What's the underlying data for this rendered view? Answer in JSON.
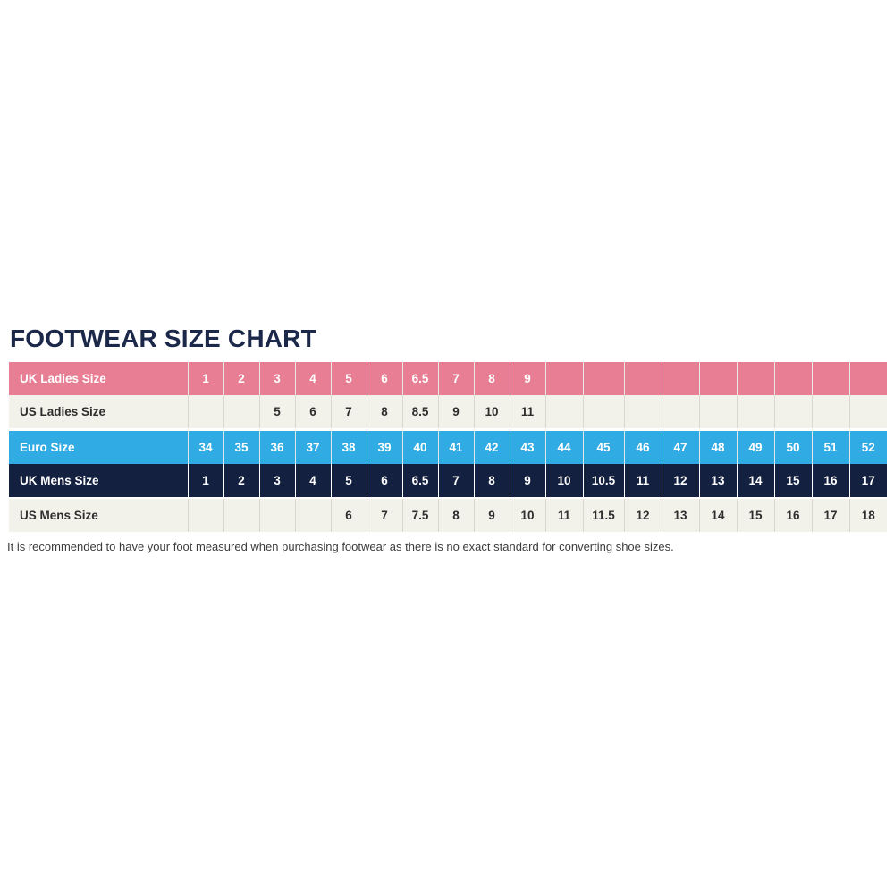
{
  "title": "FOOTWEAR SIZE CHART",
  "footnote": "It is recommended to have your foot measured when purchasing footwear as there is no exact standard for converting shoe sizes.",
  "colors": {
    "title_navy": "#1C2849",
    "row_pink": "#E87E93",
    "row_light": "#F2F1EA",
    "row_blue": "#31ABE3",
    "row_navy": "#14203F",
    "light_divider": "#D9D8CF",
    "dark_text": "#2E2E2E",
    "footnote_text": "#3C3C3C"
  },
  "chart_data": {
    "type": "table",
    "title": "FOOTWEAR SIZE CHART",
    "column_count": 19,
    "rows": [
      {
        "label": "UK Ladies Size",
        "style": "pink",
        "values": [
          "1",
          "2",
          "3",
          "4",
          "5",
          "6",
          "6.5",
          "7",
          "8",
          "9",
          "",
          "",
          "",
          "",
          "",
          "",
          "",
          "",
          ""
        ]
      },
      {
        "label": "US Ladies Size",
        "style": "light",
        "values": [
          "",
          "",
          "5",
          "6",
          "7",
          "8",
          "8.5",
          "9",
          "10",
          "11",
          "",
          "",
          "",
          "",
          "",
          "",
          "",
          "",
          ""
        ]
      },
      {
        "label": "Euro Size",
        "style": "blue",
        "values": [
          "34",
          "35",
          "36",
          "37",
          "38",
          "39",
          "40",
          "41",
          "42",
          "43",
          "44",
          "45",
          "46",
          "47",
          "48",
          "49",
          "50",
          "51",
          "52"
        ]
      },
      {
        "label": "UK Mens Size",
        "style": "navy",
        "values": [
          "1",
          "2",
          "3",
          "4",
          "5",
          "6",
          "6.5",
          "7",
          "8",
          "9",
          "10",
          "10.5",
          "11",
          "12",
          "13",
          "14",
          "15",
          "16",
          "17"
        ]
      },
      {
        "label": "US Mens Size",
        "style": "light",
        "values": [
          "",
          "",
          "",
          "",
          "6",
          "7",
          "7.5",
          "8",
          "9",
          "10",
          "11",
          "11.5",
          "12",
          "13",
          "14",
          "15",
          "16",
          "17",
          "18"
        ]
      }
    ]
  }
}
